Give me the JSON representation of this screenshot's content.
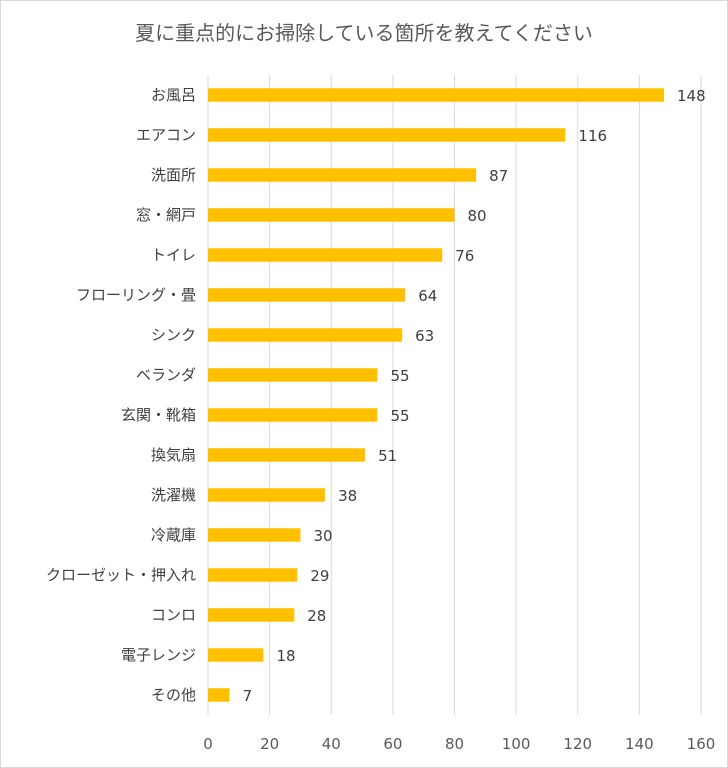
{
  "chart_data": {
    "type": "bar",
    "orientation": "horizontal",
    "title": "夏に重点的にお掃除している箇所を教えてください",
    "categories": [
      "お風呂",
      "エアコン",
      "洗面所",
      "窓・網戸",
      "トイレ",
      "フローリング・畳",
      "シンク",
      "ベランダ",
      "玄関・靴箱",
      "換気扇",
      "洗濯機",
      "冷蔵庫",
      "クローゼット・押入れ",
      "コンロ",
      "電子レンジ",
      "その他"
    ],
    "values": [
      148,
      116,
      87,
      80,
      76,
      64,
      63,
      55,
      55,
      51,
      38,
      30,
      29,
      28,
      18,
      7
    ],
    "xlim": [
      0,
      160
    ],
    "xticks": [
      0,
      20,
      40,
      60,
      80,
      100,
      120,
      140,
      160
    ],
    "xlabel": "",
    "ylabel": "",
    "grid": true,
    "bar_color": "#ffc000"
  }
}
